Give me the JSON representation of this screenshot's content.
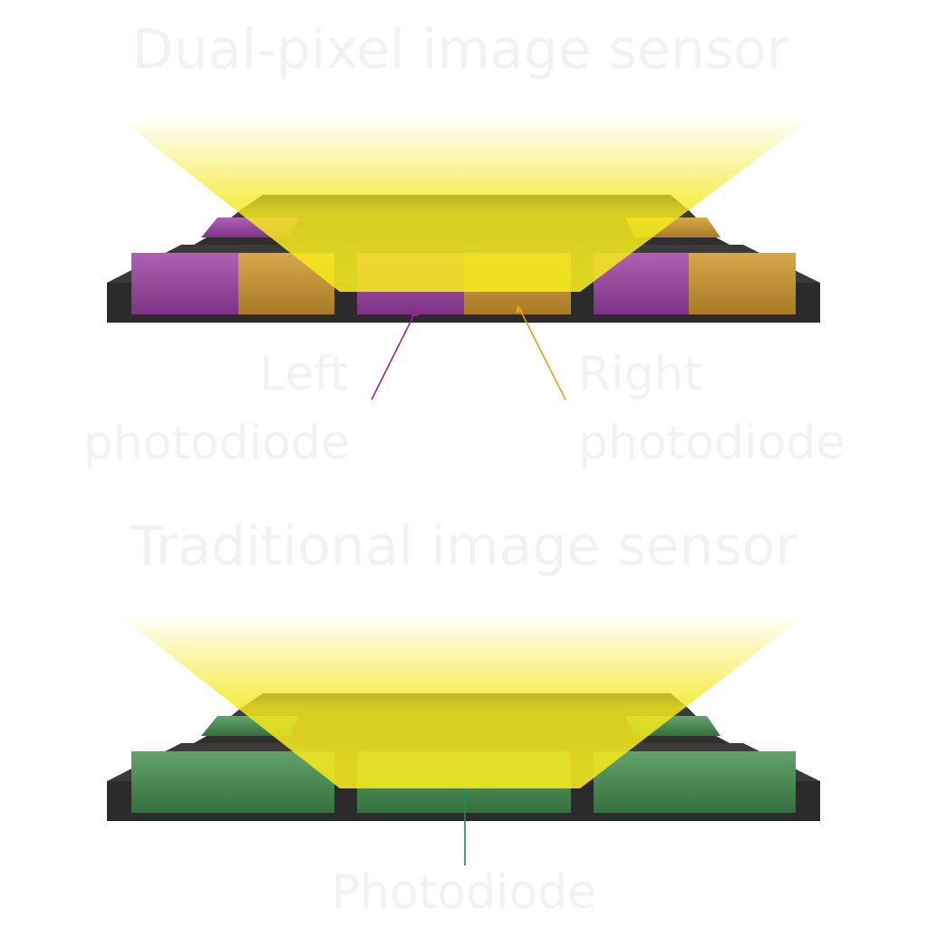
{
  "colors": {
    "background": "#ffffff",
    "label_text": "#f2f2f2",
    "frame_dark": "#3a3a3a",
    "frame_side": "#2b2b2b",
    "left_photodiode": "#9b3f9e",
    "right_photodiode": "#c9952e",
    "photodiode": "#3f8a4d",
    "light": "#f3e81e",
    "left_arrow": "#8e2a8e",
    "right_arrow": "#e0a020",
    "photodiode_arrow": "#1f8a55"
  },
  "dual_pixel": {
    "title": "Dual-pixel image sensor",
    "left_label_line1": "Left",
    "left_label_line2": "photodiode",
    "right_label_line1": "Right",
    "right_label_line2": "photodiode"
  },
  "traditional": {
    "title": "Traditional image sensor",
    "photodiode_label": "Photodiode"
  }
}
